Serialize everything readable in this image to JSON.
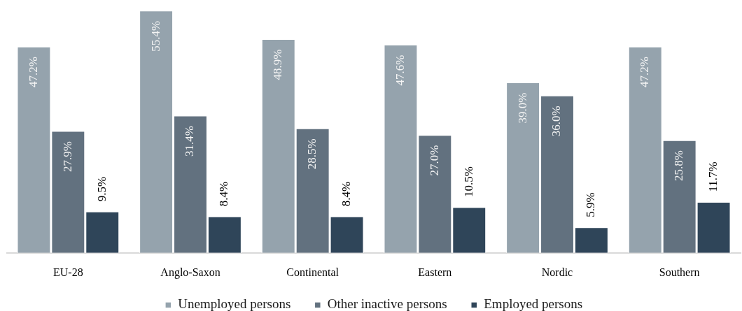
{
  "chart_data": {
    "type": "bar",
    "categories": [
      "EU-28",
      "Anglo-Saxon",
      "Continental",
      "Eastern",
      "Nordic",
      "Southern"
    ],
    "series": [
      {
        "name": "Unemployed persons",
        "color": "#95a3ad",
        "values": [
          47.2,
          55.4,
          48.9,
          47.6,
          39.0,
          47.2
        ],
        "value_labels": [
          "47.2%",
          "55.4%",
          "48.9%",
          "47.6%",
          "39.0%",
          "47.2%"
        ]
      },
      {
        "name": "Other inactive persons",
        "color": "#62717f",
        "values": [
          27.9,
          31.4,
          28.5,
          27.0,
          36.0,
          25.8
        ],
        "value_labels": [
          "27.9%",
          "31.4%",
          "28.5%",
          "27.0%",
          "36.0%",
          "25.8%"
        ]
      },
      {
        "name": "Employed persons",
        "color": "#2f4559",
        "values": [
          9.5,
          8.4,
          8.4,
          10.5,
          5.9,
          11.7
        ],
        "value_labels": [
          "9.5%",
          "8.4%",
          "8.4%",
          "10.5%",
          "5.9%",
          "11.7%"
        ]
      }
    ],
    "ylim": [
      0,
      56
    ],
    "tick_labels": "x",
    "legend": "bottom"
  }
}
